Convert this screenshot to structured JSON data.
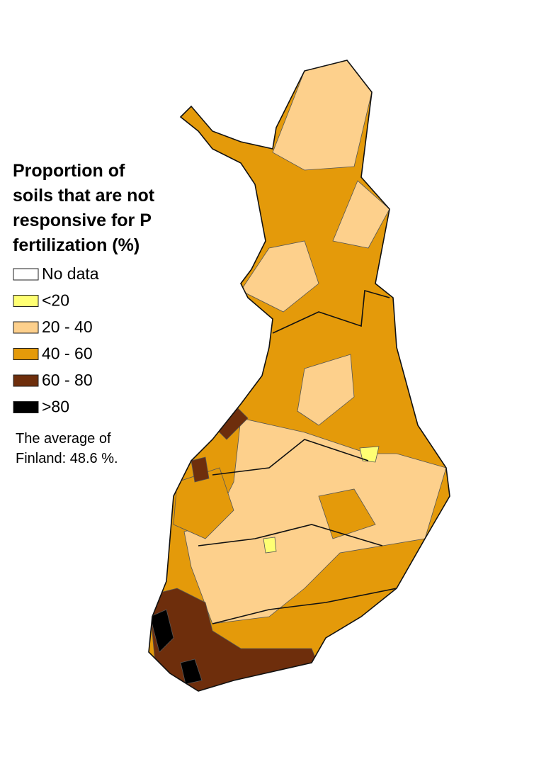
{
  "legend": {
    "title_lines": [
      "Proportion of",
      "soils that are not",
      "responsive for P",
      "fertilization (%)"
    ],
    "items": [
      {
        "label": "No data",
        "color": "#ffffff"
      },
      {
        "label": "<20",
        "color": "#ffff73"
      },
      {
        "label": "20 - 40",
        "color": "#fdd08c"
      },
      {
        "label": "40 - 60",
        "color": "#e49a0a"
      },
      {
        "label": "60 - 80",
        "color": "#6e2e0c"
      },
      {
        "label": ">80",
        "color": "#000000"
      }
    ]
  },
  "note_lines": [
    "The average of",
    "Finland: 48.6 %."
  ]
}
